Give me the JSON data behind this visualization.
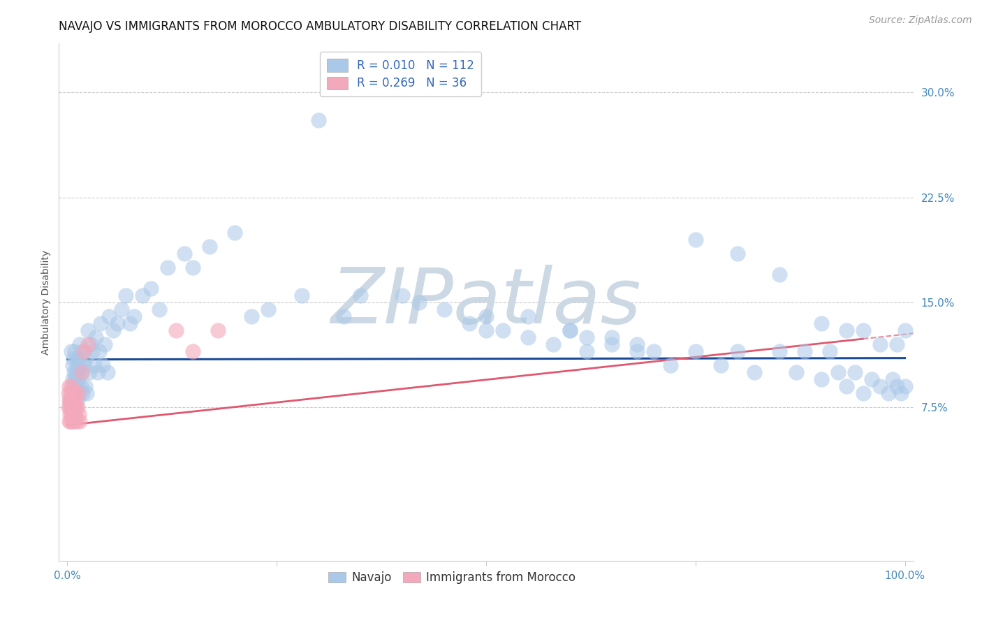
{
  "title": "NAVAJO VS IMMIGRANTS FROM MOROCCO AMBULATORY DISABILITY CORRELATION CHART",
  "source": "Source: ZipAtlas.com",
  "ylabel": "Ambulatory Disability",
  "xlim": [
    -0.01,
    1.01
  ],
  "ylim": [
    -0.035,
    0.335
  ],
  "xticks": [
    0.0,
    0.25,
    0.5,
    0.75,
    1.0
  ],
  "xticklabels": [
    "0.0%",
    "",
    "",
    "",
    "100.0%"
  ],
  "yticks": [
    0.075,
    0.15,
    0.225,
    0.3
  ],
  "yticklabels": [
    "7.5%",
    "15.0%",
    "22.5%",
    "30.0%"
  ],
  "navajo_R": "0.010",
  "navajo_N": "112",
  "morocco_R": "0.269",
  "morocco_N": "36",
  "navajo_color": "#aac8e8",
  "morocco_color": "#f4a8bb",
  "navajo_line_color": "#1a4a9a",
  "morocco_line_color": "#e05870",
  "grid_color": "#cccccc",
  "background_color": "#ffffff",
  "watermark": "ZIPatlas",
  "watermark_color": "#ccd8e4",
  "title_fontsize": 12,
  "axis_label_fontsize": 10,
  "tick_fontsize": 11,
  "legend_fontsize": 12,
  "source_fontsize": 10,
  "navajo_x": [
    0.005,
    0.006,
    0.006,
    0.007,
    0.007,
    0.008,
    0.008,
    0.009,
    0.009,
    0.01,
    0.01,
    0.01,
    0.011,
    0.011,
    0.012,
    0.012,
    0.013,
    0.013,
    0.014,
    0.014,
    0.015,
    0.015,
    0.016,
    0.017,
    0.018,
    0.019,
    0.02,
    0.021,
    0.022,
    0.023,
    0.025,
    0.026,
    0.028,
    0.03,
    0.032,
    0.034,
    0.036,
    0.038,
    0.04,
    0.042,
    0.045,
    0.048,
    0.05,
    0.055,
    0.06,
    0.065,
    0.07,
    0.075,
    0.08,
    0.09,
    0.1,
    0.11,
    0.12,
    0.14,
    0.15,
    0.17,
    0.2,
    0.22,
    0.24,
    0.28,
    0.3,
    0.33,
    0.35,
    0.4,
    0.42,
    0.45,
    0.48,
    0.5,
    0.52,
    0.55,
    0.58,
    0.6,
    0.62,
    0.65,
    0.68,
    0.7,
    0.72,
    0.75,
    0.78,
    0.8,
    0.82,
    0.85,
    0.87,
    0.88,
    0.9,
    0.91,
    0.92,
    0.93,
    0.94,
    0.95,
    0.96,
    0.97,
    0.98,
    0.985,
    0.99,
    0.995,
    1.0,
    1.0,
    0.75,
    0.8,
    0.85,
    0.9,
    0.93,
    0.95,
    0.97,
    0.99,
    0.5,
    0.55,
    0.6,
    0.62,
    0.65,
    0.68
  ],
  "navajo_y": [
    0.115,
    0.095,
    0.105,
    0.09,
    0.11,
    0.085,
    0.1,
    0.095,
    0.115,
    0.1,
    0.085,
    0.075,
    0.105,
    0.09,
    0.11,
    0.08,
    0.1,
    0.095,
    0.11,
    0.085,
    0.105,
    0.12,
    0.09,
    0.1,
    0.085,
    0.115,
    0.105,
    0.09,
    0.11,
    0.085,
    0.13,
    0.1,
    0.12,
    0.115,
    0.105,
    0.125,
    0.1,
    0.115,
    0.135,
    0.105,
    0.12,
    0.1,
    0.14,
    0.13,
    0.135,
    0.145,
    0.155,
    0.135,
    0.14,
    0.155,
    0.16,
    0.145,
    0.175,
    0.185,
    0.175,
    0.19,
    0.2,
    0.14,
    0.145,
    0.155,
    0.28,
    0.14,
    0.155,
    0.155,
    0.15,
    0.145,
    0.135,
    0.14,
    0.13,
    0.14,
    0.12,
    0.13,
    0.115,
    0.125,
    0.12,
    0.115,
    0.105,
    0.115,
    0.105,
    0.115,
    0.1,
    0.115,
    0.1,
    0.115,
    0.095,
    0.115,
    0.1,
    0.09,
    0.1,
    0.085,
    0.095,
    0.09,
    0.085,
    0.095,
    0.09,
    0.085,
    0.09,
    0.13,
    0.195,
    0.185,
    0.17,
    0.135,
    0.13,
    0.13,
    0.12,
    0.12,
    0.13,
    0.125,
    0.13,
    0.125,
    0.12,
    0.115
  ],
  "morocco_x": [
    0.001,
    0.001,
    0.002,
    0.002,
    0.002,
    0.003,
    0.003,
    0.003,
    0.004,
    0.004,
    0.004,
    0.005,
    0.005,
    0.005,
    0.006,
    0.006,
    0.006,
    0.007,
    0.007,
    0.008,
    0.008,
    0.009,
    0.009,
    0.01,
    0.01,
    0.011,
    0.012,
    0.013,
    0.014,
    0.015,
    0.017,
    0.02,
    0.025,
    0.13,
    0.15,
    0.18
  ],
  "morocco_y": [
    0.085,
    0.075,
    0.08,
    0.065,
    0.09,
    0.07,
    0.08,
    0.075,
    0.065,
    0.085,
    0.075,
    0.08,
    0.07,
    0.09,
    0.075,
    0.065,
    0.085,
    0.07,
    0.08,
    0.075,
    0.065,
    0.085,
    0.07,
    0.08,
    0.075,
    0.065,
    0.075,
    0.085,
    0.07,
    0.065,
    0.1,
    0.115,
    0.12,
    0.13,
    0.115,
    0.13
  ],
  "navajo_line_intercept": 0.109,
  "navajo_line_slope": 0.001,
  "morocco_line_intercept": 0.062,
  "morocco_line_slope": 0.065
}
